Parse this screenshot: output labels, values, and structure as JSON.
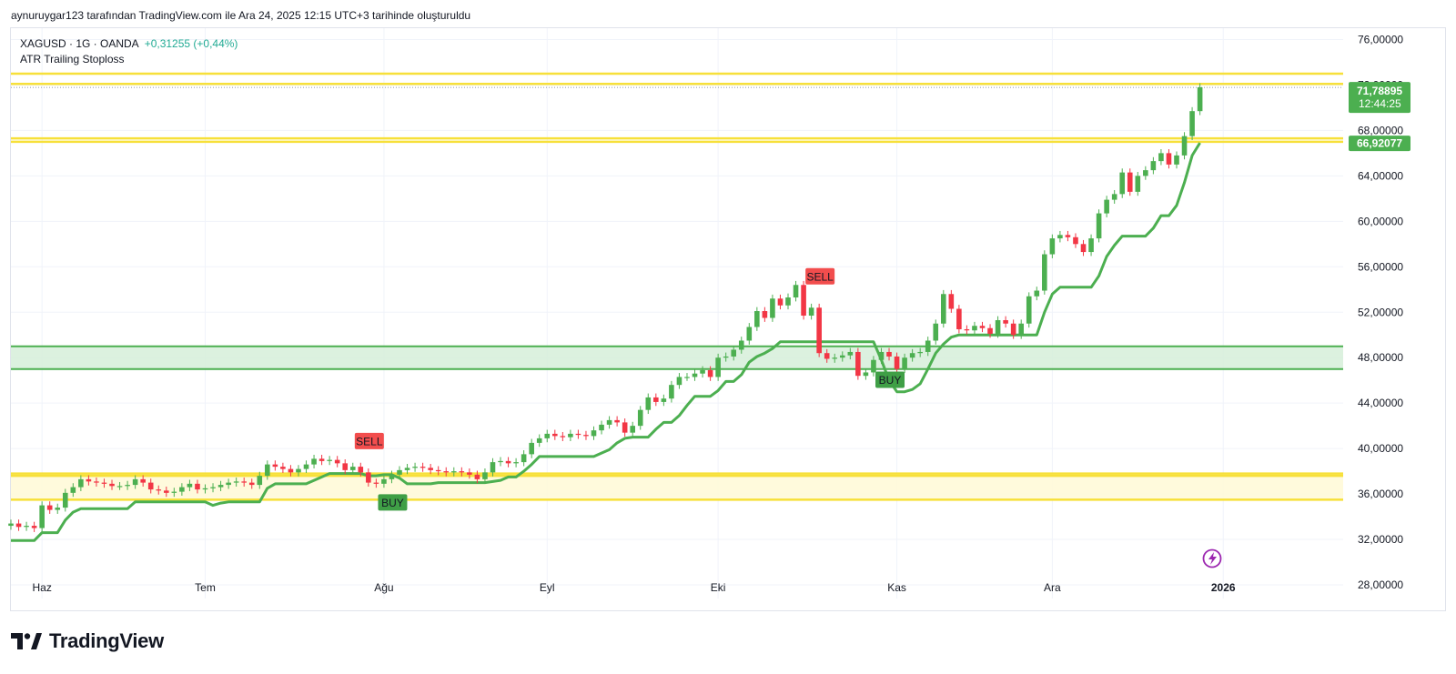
{
  "header": {
    "created_by": "aynuruygar123 tarafından TradingView.com ile Ara 24, 2025 12:15 UTC+3 tarihinde oluşturuldu"
  },
  "legend": {
    "symbol_line": "XAGUSD · 1G · OANDA",
    "change": "+0,31255 (+0,44%)",
    "indicator": "ATR Trailing Stoploss"
  },
  "price_labels": {
    "last_price": "71,78895",
    "countdown": "12:44:25",
    "stop_price": "66,92077"
  },
  "signals": [
    {
      "text": "SELL",
      "type": "sell",
      "date_index": 46
    },
    {
      "text": "BUY",
      "type": "buy",
      "date_index": 49
    },
    {
      "text": "SELL",
      "type": "sell",
      "date_index": 104
    },
    {
      "text": "BUY",
      "type": "buy",
      "date_index": 113
    }
  ],
  "colors": {
    "up": "#22ab94",
    "up_fill": "#4caf50",
    "down": "#f23645",
    "stop_line": "#4caf50",
    "yellow_line": "#f7e03a",
    "yellow_zone": "#fff9d6",
    "green_zone": "#d6efd9",
    "sell_badge": "#f24d4d",
    "buy_badge": "#3f9f46"
  },
  "brand": {
    "name": "TradingView"
  },
  "chart_data": {
    "type": "candlestick",
    "title": "XAGUSD · 1G · OANDA",
    "y_axis": {
      "ylim": [
        26.8,
        77.0
      ],
      "ticks": [
        {
          "value": 76,
          "label": "76,00000"
        },
        {
          "value": 72,
          "label": "72,00000"
        },
        {
          "value": 68,
          "label": "68,00000"
        },
        {
          "value": 64,
          "label": "64,00000"
        },
        {
          "value": 60,
          "label": "60,00000"
        },
        {
          "value": 56,
          "label": "56,00000"
        },
        {
          "value": 52,
          "label": "52,00000"
        },
        {
          "value": 48,
          "label": "48,00000"
        },
        {
          "value": 44,
          "label": "44,00000"
        },
        {
          "value": 40,
          "label": "40,00000"
        },
        {
          "value": 36,
          "label": "36,00000"
        },
        {
          "value": 32,
          "label": "32,00000"
        },
        {
          "value": 28,
          "label": "28,00000"
        }
      ]
    },
    "x_axis": {
      "ticks": [
        {
          "label": "Haz",
          "date_index": 4
        },
        {
          "label": "Tem",
          "date_index": 25
        },
        {
          "label": "Ağu",
          "date_index": 48
        },
        {
          "label": "Eyl",
          "date_index": 69
        },
        {
          "label": "Eki",
          "date_index": 91
        },
        {
          "label": "Kas",
          "date_index": 114
        },
        {
          "label": "Ara",
          "date_index": 134
        },
        {
          "label": "2026",
          "date_index": 156
        }
      ]
    },
    "candles": {
      "close": [
        33.4,
        33.1,
        33.2,
        33.0,
        35.0,
        34.6,
        34.8,
        36.1,
        36.6,
        37.3,
        37.1,
        37.0,
        36.9,
        36.7,
        36.7,
        36.8,
        37.3,
        37.0,
        36.4,
        36.3,
        36.1,
        36.2,
        36.6,
        36.9,
        36.4,
        36.5,
        36.6,
        36.8,
        37.0,
        37.1,
        37.0,
        36.8,
        37.6,
        38.6,
        38.4,
        38.2,
        37.9,
        38.2,
        38.6,
        39.1,
        38.9,
        39.0,
        38.7,
        38.1,
        38.4,
        37.9,
        37.0,
        36.9,
        37.3,
        37.7,
        38.1,
        38.3,
        38.4,
        38.3,
        38.1,
        38.0,
        37.9,
        38.0,
        37.9,
        37.7,
        37.3,
        37.9,
        38.8,
        38.9,
        38.7,
        38.8,
        39.5,
        40.5,
        40.9,
        41.3,
        41.1,
        41.0,
        41.3,
        41.2,
        41.1,
        41.6,
        42.1,
        42.5,
        42.3,
        41.4,
        42.0,
        43.4,
        44.5,
        44.1,
        44.4,
        45.6,
        46.3,
        46.3,
        46.6,
        46.9,
        46.3,
        48.0,
        48.1,
        48.7,
        49.5,
        50.7,
        52.1,
        51.5,
        53.2,
        52.6,
        53.3,
        54.4,
        51.7,
        52.4,
        48.4,
        47.9,
        48.0,
        48.2,
        48.5,
        46.4,
        46.7,
        47.8,
        48.5,
        48.1,
        47.0,
        48.0,
        48.4,
        48.5,
        49.5,
        51.0,
        53.6,
        52.3,
        50.5,
        50.4,
        50.8,
        50.6,
        50.1,
        51.3,
        51.0,
        50.0,
        51.0,
        53.4,
        53.9,
        57.1,
        58.5,
        58.8,
        58.6,
        58.0,
        57.3,
        58.5,
        60.7,
        61.9,
        62.4,
        64.3,
        62.6,
        64.0,
        64.5,
        65.3,
        66.0,
        65.0,
        65.8,
        67.5,
        69.7,
        71.8
      ],
      "open": [
        33.2,
        33.4,
        33.1,
        33.2,
        33.0,
        35.0,
        34.6,
        34.8,
        36.1,
        36.6,
        37.3,
        37.1,
        37.0,
        36.9,
        36.7,
        36.7,
        36.8,
        37.3,
        37.0,
        36.4,
        36.3,
        36.1,
        36.2,
        36.6,
        36.9,
        36.4,
        36.5,
        36.6,
        36.8,
        37.0,
        37.1,
        37.0,
        36.8,
        37.6,
        38.6,
        38.4,
        38.2,
        37.9,
        38.2,
        38.6,
        39.1,
        38.9,
        39.0,
        38.7,
        38.1,
        38.4,
        37.9,
        37.0,
        36.9,
        37.3,
        37.7,
        38.1,
        38.3,
        38.4,
        38.3,
        38.1,
        38.0,
        37.9,
        38.0,
        37.9,
        37.7,
        37.3,
        37.9,
        38.8,
        38.9,
        38.7,
        38.8,
        39.5,
        40.5,
        40.9,
        41.3,
        41.1,
        41.0,
        41.3,
        41.2,
        41.1,
        41.6,
        42.1,
        42.5,
        42.3,
        41.4,
        42.0,
        43.4,
        44.5,
        44.1,
        44.4,
        45.6,
        46.3,
        46.3,
        46.6,
        46.9,
        46.3,
        48.0,
        48.1,
        48.7,
        49.5,
        50.7,
        52.1,
        51.5,
        53.2,
        52.6,
        53.3,
        54.4,
        51.7,
        52.4,
        48.4,
        47.9,
        48.0,
        48.2,
        48.5,
        46.4,
        46.7,
        47.8,
        48.5,
        48.1,
        47.0,
        48.0,
        48.4,
        48.5,
        49.5,
        51.0,
        53.6,
        52.3,
        50.5,
        50.4,
        50.8,
        50.6,
        50.1,
        51.3,
        51.0,
        50.0,
        51.0,
        53.4,
        53.9,
        57.1,
        58.5,
        58.8,
        58.6,
        58.0,
        57.3,
        58.5,
        60.7,
        61.9,
        62.4,
        64.3,
        62.6,
        64.0,
        64.5,
        65.3,
        66.0,
        65.0,
        65.8,
        67.5,
        69.7
      ]
    },
    "series": [
      {
        "name": "ATR Trailing Stoploss",
        "values": [
          31.9,
          31.9,
          31.9,
          31.9,
          32.6,
          32.6,
          32.6,
          33.7,
          34.4,
          34.7,
          34.7,
          34.7,
          34.7,
          34.7,
          34.7,
          34.7,
          35.3,
          35.3,
          35.3,
          35.3,
          35.3,
          35.3,
          35.3,
          35.3,
          35.3,
          35.3,
          35.0,
          35.2,
          35.3,
          35.3,
          35.3,
          35.3,
          35.3,
          36.5,
          36.9,
          36.9,
          36.9,
          36.9,
          36.9,
          37.2,
          37.5,
          37.8,
          37.8,
          37.8,
          37.8,
          37.8,
          37.6,
          37.6,
          37.7,
          37.7,
          37.4,
          36.9,
          36.9,
          36.9,
          36.9,
          37.0,
          37.0,
          37.0,
          37.0,
          37.0,
          37.0,
          37.0,
          37.1,
          37.2,
          37.5,
          37.5,
          38.0,
          38.6,
          39.3,
          39.3,
          39.3,
          39.3,
          39.3,
          39.3,
          39.3,
          39.3,
          39.6,
          39.9,
          40.5,
          40.9,
          41.0,
          41.0,
          41.0,
          41.7,
          42.3,
          42.3,
          42.9,
          43.8,
          44.6,
          44.6,
          44.6,
          45.1,
          45.9,
          45.9,
          46.5,
          47.6,
          48.1,
          48.4,
          48.8,
          49.4,
          49.4,
          49.4,
          49.4,
          49.4,
          49.4,
          49.4,
          49.4,
          49.4,
          49.4,
          49.4,
          49.4,
          49.4,
          47.8,
          46.0,
          45.0,
          45.0,
          45.2,
          45.7,
          47.0,
          48.4,
          49.2,
          49.8,
          50.0,
          50.0,
          50.0,
          50.0,
          50.0,
          50.0,
          50.0,
          50.0,
          50.0,
          50.0,
          50.0,
          52.0,
          53.6,
          54.2,
          54.2,
          54.2,
          54.2,
          54.2,
          55.2,
          56.9,
          57.9,
          58.7,
          58.7,
          58.7,
          58.7,
          59.4,
          60.5,
          60.5,
          61.4,
          63.4,
          65.8,
          66.9
        ]
      }
    ],
    "horizontal_lines": [
      {
        "value": 73.0,
        "color": "yellow"
      },
      {
        "value": 72.1,
        "color": "yellow"
      },
      {
        "value": 67.3,
        "color": "yellow"
      },
      {
        "value": 67.0,
        "color": "yellow"
      },
      {
        "value": 37.8,
        "color": "yellow"
      },
      {
        "value": 37.6,
        "color": "yellow"
      },
      {
        "value": 35.5,
        "color": "yellow"
      }
    ],
    "zones": [
      {
        "from": 47.0,
        "to": 49.0,
        "color": "green"
      },
      {
        "from": 35.5,
        "to": 37.8,
        "color": "yellow"
      }
    ],
    "last_price_line": 71.79
  }
}
